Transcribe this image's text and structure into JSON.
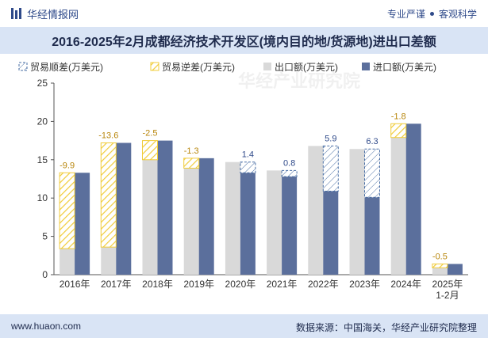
{
  "header": {
    "brand": "华经情报网",
    "tagline_left": "专业严谨",
    "tagline_right": "客观科学"
  },
  "footer": {
    "site": "www.huaon.com",
    "source": "数据来源：中国海关，华经产业研究院整理"
  },
  "watermark": "华经产业研究院",
  "colors": {
    "export": "#d9d9d9",
    "import": "#5b6f9c",
    "surplus_stroke": "#4a6fa5",
    "deficit_hatch": "#f0cc3a",
    "title_bg": "#d9e4f5"
  },
  "chart_data": {
    "type": "bar",
    "title": "2016-2025年2月成都经济技术开发区(境内目的地/货源地)进出口差额",
    "categories": [
      "2016年",
      "2017年",
      "2018年",
      "2019年",
      "2020年",
      "2021年",
      "2022年",
      "2023年",
      "2024年",
      "2025年\n1-2月"
    ],
    "ylim": [
      0,
      25
    ],
    "yticks": [
      0,
      5,
      10,
      15,
      20,
      25
    ],
    "grid": false,
    "legend_position": "top",
    "legend": [
      "贸易顺差(万美元)",
      "贸易逆差(万美元)",
      "出口额(万美元)",
      "进口额(万美元)"
    ],
    "series": [
      {
        "name": "出口额(万美元)",
        "values": [
          3.4,
          3.6,
          15.0,
          13.9,
          14.7,
          13.6,
          16.8,
          16.4,
          17.9,
          0.9
        ]
      },
      {
        "name": "进口额(万美元)",
        "values": [
          13.3,
          17.2,
          17.5,
          15.2,
          13.3,
          12.8,
          10.9,
          10.1,
          19.7,
          1.4
        ]
      }
    ],
    "balance": {
      "labels": [
        "-9.9",
        "-13.6",
        "-2.5",
        "-1.3",
        "1.4",
        "0.8",
        "5.9",
        "6.3",
        "-1.8",
        "-0.5"
      ],
      "values": [
        -9.9,
        -13.6,
        -2.5,
        -1.3,
        1.4,
        0.8,
        5.9,
        6.3,
        -1.8,
        -0.5
      ]
    }
  }
}
